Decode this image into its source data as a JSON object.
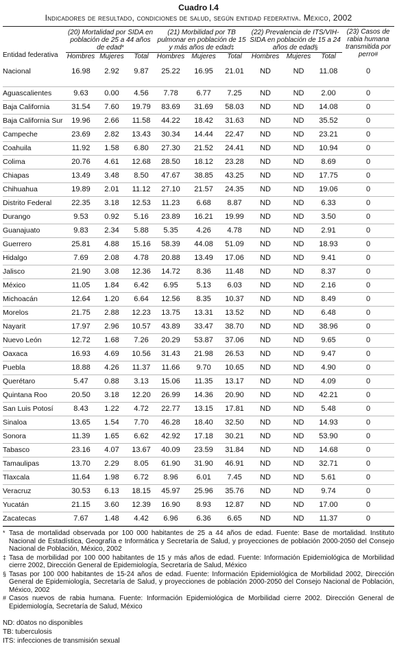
{
  "header": {
    "title": "Cuadro I.4",
    "subtitle_main": "Indicadores de resultado, condiciones de salud, según entidad federativa. México,",
    "subtitle_year": "2002"
  },
  "columns": {
    "entity": "Entidad federativa",
    "g1": "(20) Mortalidad por SIDA en población de 25 a 44 años de edad",
    "g1_mark": "*",
    "g2": "(21) Morbilidad por TB pulmonar en población de 15 y más años de edad",
    "g2_mark": "‡",
    "g3": "(22) Prevalencia de ITS/VIH-SIDA en población de 15 a 24 años de edad",
    "g3_mark": "§",
    "g4": "(23) Casos de rabia humana transmitida por perro",
    "g4_mark": "#",
    "men": "Hombres",
    "women": "Mujeres",
    "total": "Total"
  },
  "rows": [
    {
      "name": "Nacional",
      "v": [
        "16.98",
        "2.92",
        "9.87",
        "25.22",
        "16.95",
        "21.01",
        "ND",
        "ND",
        "11.08",
        "0"
      ]
    },
    {
      "name": "Aguascalientes",
      "v": [
        "9.63",
        "0.00",
        "4.56",
        "7.78",
        "6.77",
        "7.25",
        "ND",
        "ND",
        "2.00",
        "0"
      ]
    },
    {
      "name": "Baja California",
      "v": [
        "31.54",
        "7.60",
        "19.79",
        "83.69",
        "31.69",
        "58.03",
        "ND",
        "ND",
        "14.08",
        "0"
      ]
    },
    {
      "name": "Baja California Sur",
      "v": [
        "19.96",
        "2.66",
        "11.58",
        "44.22",
        "18.42",
        "31.63",
        "ND",
        "ND",
        "35.52",
        "0"
      ]
    },
    {
      "name": "Campeche",
      "v": [
        "23.69",
        "2.82",
        "13.43",
        "30.34",
        "14.44",
        "22.47",
        "ND",
        "ND",
        "23.21",
        "0"
      ]
    },
    {
      "name": "Coahuila",
      "v": [
        "11.92",
        "1.58",
        "6.80",
        "27.30",
        "21.52",
        "24.41",
        "ND",
        "ND",
        "10.94",
        "0"
      ]
    },
    {
      "name": "Colima",
      "v": [
        "20.76",
        "4.61",
        "12.68",
        "28.50",
        "18.12",
        "23.28",
        "ND",
        "ND",
        "8.69",
        "0"
      ]
    },
    {
      "name": "Chiapas",
      "v": [
        "13.49",
        "3.48",
        "8.50",
        "47.67",
        "38.85",
        "43.25",
        "ND",
        "ND",
        "17.75",
        "0"
      ]
    },
    {
      "name": "Chihuahua",
      "v": [
        "19.89",
        "2.01",
        "11.12",
        "27.10",
        "21.57",
        "24.35",
        "ND",
        "ND",
        "19.06",
        "0"
      ]
    },
    {
      "name": "Distrito Federal",
      "v": [
        "22.35",
        "3.18",
        "12.53",
        "11.23",
        "6.68",
        "8.87",
        "ND",
        "ND",
        "6.33",
        "0"
      ]
    },
    {
      "name": "Durango",
      "v": [
        "9.53",
        "0.92",
        "5.16",
        "23.89",
        "16.21",
        "19.99",
        "ND",
        "ND",
        "3.50",
        "0"
      ]
    },
    {
      "name": "Guanajuato",
      "v": [
        "9.83",
        "2.34",
        "5.88",
        "5.35",
        "4.26",
        "4.78",
        "ND",
        "ND",
        "2.91",
        "0"
      ]
    },
    {
      "name": "Guerrero",
      "v": [
        "25.81",
        "4.88",
        "15.16",
        "58.39",
        "44.08",
        "51.09",
        "ND",
        "ND",
        "18.93",
        "0"
      ]
    },
    {
      "name": "Hidalgo",
      "v": [
        "7.69",
        "2.08",
        "4.78",
        "20.88",
        "13.49",
        "17.06",
        "ND",
        "ND",
        "9.41",
        "0"
      ]
    },
    {
      "name": "Jalisco",
      "v": [
        "21.90",
        "3.08",
        "12.36",
        "14.72",
        "8.36",
        "11.48",
        "ND",
        "ND",
        "8.37",
        "0"
      ]
    },
    {
      "name": "México",
      "v": [
        "11.05",
        "1.84",
        "6.42",
        "6.95",
        "5.13",
        "6.03",
        "ND",
        "ND",
        "2.16",
        "0"
      ]
    },
    {
      "name": "Michoacán",
      "v": [
        "12.64",
        "1.20",
        "6.64",
        "12.56",
        "8.35",
        "10.37",
        "ND",
        "ND",
        "8.49",
        "0"
      ]
    },
    {
      "name": "Morelos",
      "v": [
        "21.75",
        "2.88",
        "12.23",
        "13.75",
        "13.31",
        "13.52",
        "ND",
        "ND",
        "6.48",
        "0"
      ]
    },
    {
      "name": "Nayarit",
      "v": [
        "17.97",
        "2.96",
        "10.57",
        "43.89",
        "33.47",
        "38.70",
        "ND",
        "ND",
        "38.96",
        "0"
      ]
    },
    {
      "name": "Nuevo León",
      "v": [
        "12.72",
        "1.68",
        "7.26",
        "20.29",
        "53.87",
        "37.06",
        "ND",
        "ND",
        "9.65",
        "0"
      ]
    },
    {
      "name": "Oaxaca",
      "v": [
        "16.93",
        "4.69",
        "10.56",
        "31.43",
        "21.98",
        "26.53",
        "ND",
        "ND",
        "9.47",
        "0"
      ]
    },
    {
      "name": "Puebla",
      "v": [
        "18.88",
        "4.26",
        "11.37",
        "11.66",
        "9.70",
        "10.65",
        "ND",
        "ND",
        "4.90",
        "0"
      ]
    },
    {
      "name": "Querétaro",
      "v": [
        "5.47",
        "0.88",
        "3.13",
        "15.06",
        "11.35",
        "13.17",
        "ND",
        "ND",
        "4.09",
        "0"
      ]
    },
    {
      "name": "Quintana Roo",
      "v": [
        "20.50",
        "3.18",
        "12.20",
        "26.99",
        "14.36",
        "20.90",
        "ND",
        "ND",
        "42.21",
        "0"
      ]
    },
    {
      "name": "San Luis Potosí",
      "v": [
        "8.43",
        "1.22",
        "4.72",
        "22.77",
        "13.15",
        "17.81",
        "ND",
        "ND",
        "5.48",
        "0"
      ]
    },
    {
      "name": "Sinaloa",
      "v": [
        "13.65",
        "1.54",
        "7.70",
        "46.28",
        "18.40",
        "32.50",
        "ND",
        "ND",
        "14.93",
        "0"
      ]
    },
    {
      "name": "Sonora",
      "v": [
        "11.39",
        "1.65",
        "6.62",
        "42.92",
        "17.18",
        "30.21",
        "ND",
        "ND",
        "53.90",
        "0"
      ]
    },
    {
      "name": "Tabasco",
      "v": [
        "23.16",
        "4.07",
        "13.67",
        "40.09",
        "23.59",
        "31.84",
        "ND",
        "ND",
        "14.68",
        "0"
      ]
    },
    {
      "name": "Tamaulipas",
      "v": [
        "13.70",
        "2.29",
        "8.05",
        "61.90",
        "31.90",
        "46.91",
        "ND",
        "ND",
        "32.71",
        "0"
      ]
    },
    {
      "name": "Tlaxcala",
      "v": [
        "11.64",
        "1.98",
        "6.72",
        "8.96",
        "6.01",
        "7.45",
        "ND",
        "ND",
        "5.61",
        "0"
      ]
    },
    {
      "name": "Veracruz",
      "v": [
        "30.53",
        "6.13",
        "18.15",
        "45.97",
        "25.96",
        "35.76",
        "ND",
        "ND",
        "9.74",
        "0"
      ]
    },
    {
      "name": "Yucatán",
      "v": [
        "21.15",
        "3.60",
        "12.39",
        "16.90",
        "8.93",
        "12.87",
        "ND",
        "ND",
        "17.00",
        "0"
      ]
    },
    {
      "name": "Zacatecas",
      "v": [
        "7.67",
        "1.48",
        "4.42",
        "6.96",
        "6.36",
        "6.65",
        "ND",
        "ND",
        "11.37",
        "0"
      ]
    }
  ],
  "notes": [
    {
      "mark": "*",
      "text": "Tasa de mortalidad observada por 100 000 habitantes de 25 a 44 años de edad. Fuente: Base de mortalidad. Instituto Nacional de Estadística, Geografía e Informática y Secretaría de Salud, y proyecciones de población 2000-2050 del Consejo Nacional de Población, México, 2002"
    },
    {
      "mark": "‡",
      "text": "Tasa de morbilidad por 100 000 habitantes de 15 y más años de edad. Fuente: Información Epidemiológica de Morbilidad cierre 2002, Dirección General de Epidemiología, Secretaría de Salud, México"
    },
    {
      "mark": "§",
      "text": "Tasas por 100 000 habitantes de 15-24 años de edad. Fuente: Información Epidemiológica de Morbilidad 2002, Dirección General de Epidemiología, Secretaría de Salud, y proyecciones de población 2000-2050 del Consejo Nacional de Población, México, 2002"
    },
    {
      "mark": "#",
      "text": "Casos nuevos de rabia humana. Fuente: Información Epidemiológica de Morbilidad cierre 2002. Dirección General de Epidemiología, Secretaría de Salud, México"
    }
  ],
  "legend": [
    "ND: d0atos no disponibles",
    "TB: tuberculosis",
    "ITS: infecciones de transmisión sexual"
  ]
}
